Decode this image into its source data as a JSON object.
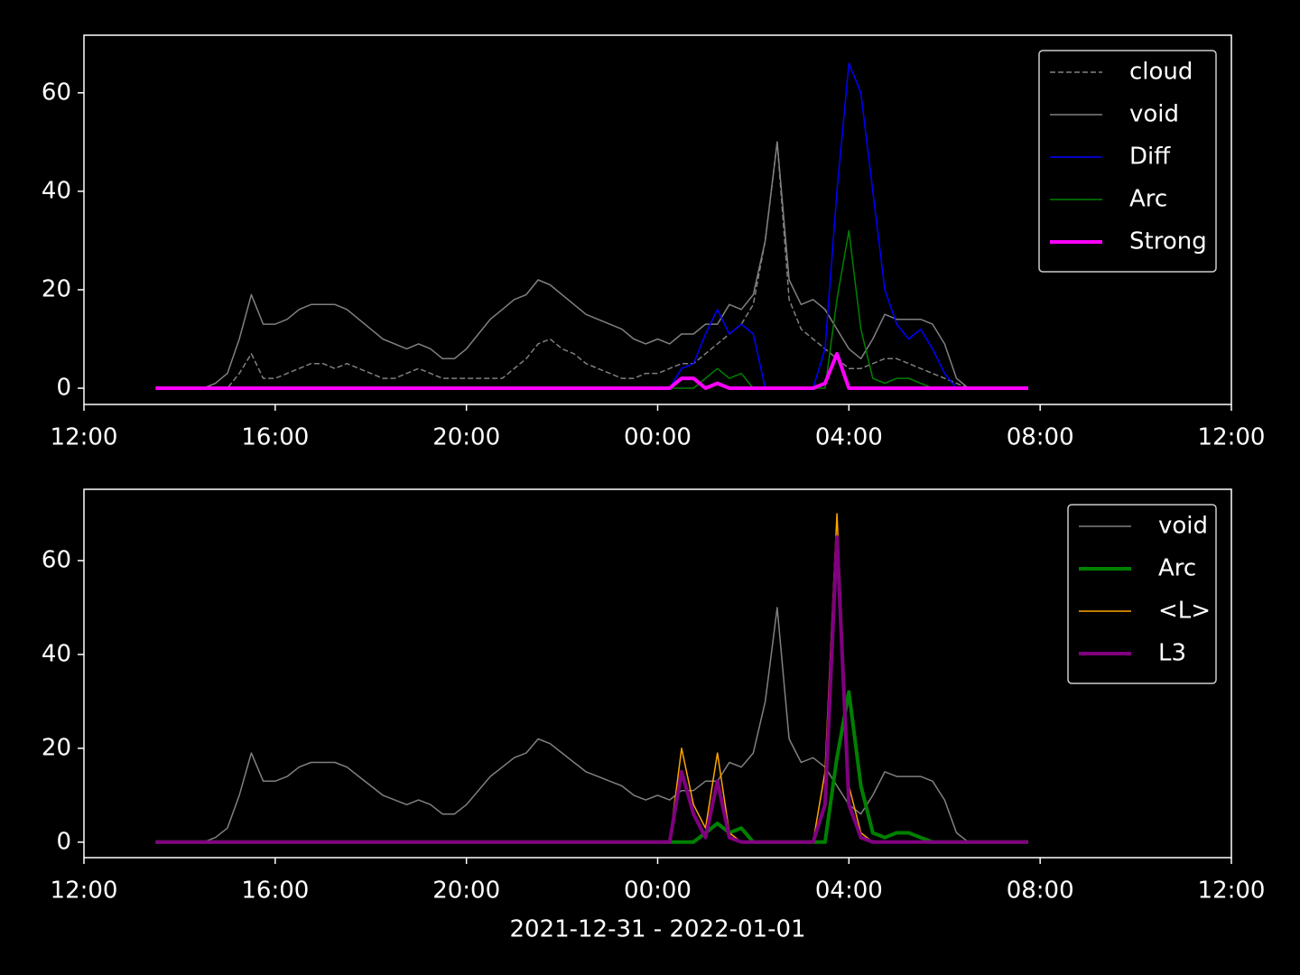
{
  "chart_data": [
    {
      "type": "line",
      "x": [
        1.5,
        1.75,
        2,
        2.25,
        2.5,
        2.75,
        3,
        3.25,
        3.5,
        3.75,
        4,
        4.25,
        4.5,
        4.75,
        5,
        5.25,
        5.5,
        5.75,
        6,
        6.25,
        6.5,
        6.75,
        7,
        7.25,
        7.5,
        7.75,
        8,
        8.25,
        8.5,
        8.75,
        9,
        9.25,
        9.5,
        9.75,
        10,
        10.25,
        10.5,
        10.75,
        11,
        11.25,
        11.5,
        11.75,
        12,
        12.25,
        12.5,
        12.75,
        13,
        13.25,
        13.5,
        13.75,
        14,
        14.25,
        14.5,
        14.75,
        15,
        15.25,
        15.5,
        15.75,
        16,
        16.25,
        16.5,
        16.75,
        17,
        17.25,
        17.5,
        17.75,
        18,
        18.25,
        18.5,
        18.75,
        19,
        19.25,
        19.5,
        19.75
      ],
      "xlim": [
        0,
        24
      ],
      "xticks": [
        {
          "value": 0,
          "label": "12:00"
        },
        {
          "value": 4,
          "label": "16:00"
        },
        {
          "value": 8,
          "label": "20:00"
        },
        {
          "value": 12,
          "label": "00:00"
        },
        {
          "value": 16,
          "label": "04:00"
        },
        {
          "value": 20,
          "label": "08:00"
        },
        {
          "value": 24,
          "label": "12:00"
        }
      ],
      "ylim": [
        -3.3,
        71.7
      ],
      "yticks": [
        0,
        20,
        40,
        60
      ],
      "legend": "upper right",
      "series": [
        {
          "name": "cloud",
          "color": "#808080",
          "linestyle": "dashed",
          "linewidth": 1.5,
          "values": [
            0,
            0,
            0,
            0,
            0,
            0,
            0,
            3,
            7,
            2,
            2,
            3,
            4,
            5,
            5,
            4,
            5,
            4,
            3,
            2,
            2,
            3,
            4,
            3,
            2,
            2,
            2,
            2,
            2,
            2,
            4,
            6,
            9,
            10,
            8,
            7,
            5,
            4,
            3,
            2,
            2,
            3,
            3,
            4,
            5,
            5,
            7,
            9,
            11,
            13,
            17,
            30,
            50,
            18,
            12,
            10,
            8,
            6,
            4,
            4,
            5,
            6,
            6,
            5,
            4,
            3,
            2,
            1,
            0,
            0,
            0,
            0,
            0,
            0
          ]
        },
        {
          "name": "void",
          "color": "#808080",
          "linestyle": "solid",
          "linewidth": 1.5,
          "values": [
            0,
            0,
            0,
            0,
            0,
            1,
            3,
            10,
            19,
            13,
            13,
            14,
            16,
            17,
            17,
            17,
            16,
            14,
            12,
            10,
            9,
            8,
            9,
            8,
            6,
            6,
            8,
            11,
            14,
            16,
            18,
            19,
            22,
            21,
            19,
            17,
            15,
            14,
            13,
            12,
            10,
            9,
            10,
            9,
            11,
            11,
            13,
            13,
            17,
            16,
            19,
            30,
            50,
            22,
            17,
            18,
            16,
            12,
            8,
            6,
            10,
            15,
            14,
            14,
            14,
            13,
            9,
            2,
            0,
            0,
            0,
            0,
            0,
            0
          ]
        },
        {
          "name": "Diff",
          "color": "#0000ff",
          "linestyle": "solid",
          "linewidth": 1.5,
          "values": [
            0,
            0,
            0,
            0,
            0,
            0,
            0,
            0,
            0,
            0,
            0,
            0,
            0,
            0,
            0,
            0,
            0,
            0,
            0,
            0,
            0,
            0,
            0,
            0,
            0,
            0,
            0,
            0,
            0,
            0,
            0,
            0,
            0,
            0,
            0,
            0,
            0,
            0,
            0,
            0,
            0,
            0,
            0,
            0,
            4,
            5,
            11,
            16,
            11,
            13,
            11,
            0,
            0,
            0,
            0,
            0,
            8,
            40,
            66,
            60,
            40,
            20,
            13,
            10,
            12,
            8,
            3,
            0,
            0,
            0,
            0,
            0,
            0,
            0
          ]
        },
        {
          "name": "Arc",
          "color": "#008000",
          "linestyle": "solid",
          "linewidth": 1.5,
          "values": [
            0,
            0,
            0,
            0,
            0,
            0,
            0,
            0,
            0,
            0,
            0,
            0,
            0,
            0,
            0,
            0,
            0,
            0,
            0,
            0,
            0,
            0,
            0,
            0,
            0,
            0,
            0,
            0,
            0,
            0,
            0,
            0,
            0,
            0,
            0,
            0,
            0,
            0,
            0,
            0,
            0,
            0,
            0,
            0,
            0,
            0,
            2,
            4,
            2,
            3,
            0,
            0,
            0,
            0,
            0,
            0,
            0,
            18,
            32,
            12,
            2,
            1,
            2,
            2,
            1,
            0,
            0,
            0,
            0,
            0,
            0,
            0,
            0,
            0
          ]
        },
        {
          "name": "Strong",
          "color": "#ff00ff",
          "linestyle": "solid",
          "linewidth": 4,
          "values": [
            0,
            0,
            0,
            0,
            0,
            0,
            0,
            0,
            0,
            0,
            0,
            0,
            0,
            0,
            0,
            0,
            0,
            0,
            0,
            0,
            0,
            0,
            0,
            0,
            0,
            0,
            0,
            0,
            0,
            0,
            0,
            0,
            0,
            0,
            0,
            0,
            0,
            0,
            0,
            0,
            0,
            0,
            0,
            0,
            2,
            2,
            0,
            1,
            0,
            0,
            0,
            0,
            0,
            0,
            0,
            0,
            1,
            7,
            0,
            0,
            0,
            0,
            0,
            0,
            0,
            0,
            0,
            0,
            0,
            0,
            0,
            0,
            0,
            0
          ]
        }
      ]
    },
    {
      "type": "line",
      "x": [
        1.5,
        1.75,
        2,
        2.25,
        2.5,
        2.75,
        3,
        3.25,
        3.5,
        3.75,
        4,
        4.25,
        4.5,
        4.75,
        5,
        5.25,
        5.5,
        5.75,
        6,
        6.25,
        6.5,
        6.75,
        7,
        7.25,
        7.5,
        7.75,
        8,
        8.25,
        8.5,
        8.75,
        9,
        9.25,
        9.5,
        9.75,
        10,
        10.25,
        10.5,
        10.75,
        11,
        11.25,
        11.5,
        11.75,
        12,
        12.25,
        12.5,
        12.75,
        13,
        13.25,
        13.5,
        13.75,
        14,
        14.25,
        14.5,
        14.75,
        15,
        15.25,
        15.5,
        15.75,
        16,
        16.25,
        16.5,
        16.75,
        17,
        17.25,
        17.5,
        17.75,
        18,
        18.25,
        18.5,
        18.75,
        19,
        19.25,
        19.5,
        19.75
      ],
      "xlim": [
        0,
        24
      ],
      "xticks": [
        {
          "value": 0,
          "label": "12:00"
        },
        {
          "value": 4,
          "label": "16:00"
        },
        {
          "value": 8,
          "label": "20:00"
        },
        {
          "value": 12,
          "label": "00:00"
        },
        {
          "value": 16,
          "label": "04:00"
        },
        {
          "value": 20,
          "label": "08:00"
        },
        {
          "value": 24,
          "label": "12:00"
        }
      ],
      "xlabel": "2021-12-31 - 2022-01-01",
      "ylim": [
        -3.3,
        75.2
      ],
      "yticks": [
        0,
        20,
        40,
        60
      ],
      "legend": "upper right",
      "series": [
        {
          "name": "void",
          "color": "#808080",
          "linestyle": "solid",
          "linewidth": 1.5,
          "values": [
            0,
            0,
            0,
            0,
            0,
            1,
            3,
            10,
            19,
            13,
            13,
            14,
            16,
            17,
            17,
            17,
            16,
            14,
            12,
            10,
            9,
            8,
            9,
            8,
            6,
            6,
            8,
            11,
            14,
            16,
            18,
            19,
            22,
            21,
            19,
            17,
            15,
            14,
            13,
            12,
            10,
            9,
            10,
            9,
            11,
            11,
            13,
            13,
            17,
            16,
            19,
            30,
            50,
            22,
            17,
            18,
            16,
            12,
            8,
            6,
            10,
            15,
            14,
            14,
            14,
            13,
            9,
            2,
            0,
            0,
            0,
            0,
            0,
            0
          ]
        },
        {
          "name": "Arc",
          "color": "#008000",
          "linestyle": "solid",
          "linewidth": 4,
          "values": [
            0,
            0,
            0,
            0,
            0,
            0,
            0,
            0,
            0,
            0,
            0,
            0,
            0,
            0,
            0,
            0,
            0,
            0,
            0,
            0,
            0,
            0,
            0,
            0,
            0,
            0,
            0,
            0,
            0,
            0,
            0,
            0,
            0,
            0,
            0,
            0,
            0,
            0,
            0,
            0,
            0,
            0,
            0,
            0,
            0,
            0,
            2,
            4,
            2,
            3,
            0,
            0,
            0,
            0,
            0,
            0,
            0,
            18,
            32,
            12,
            2,
            1,
            2,
            2,
            1,
            0,
            0,
            0,
            0,
            0,
            0,
            0,
            0,
            0
          ]
        },
        {
          "name": "<L>",
          "color": "#ffa500",
          "linestyle": "solid",
          "linewidth": 1.5,
          "values": [
            0,
            0,
            0,
            0,
            0,
            0,
            0,
            0,
            0,
            0,
            0,
            0,
            0,
            0,
            0,
            0,
            0,
            0,
            0,
            0,
            0,
            0,
            0,
            0,
            0,
            0,
            0,
            0,
            0,
            0,
            0,
            0,
            0,
            0,
            0,
            0,
            0,
            0,
            0,
            0,
            0,
            0,
            0,
            0,
            20,
            8,
            3,
            19,
            2,
            0,
            0,
            0,
            0,
            0,
            0,
            0,
            15,
            70,
            12,
            2,
            0,
            0,
            0,
            0,
            0,
            0,
            0,
            0,
            0,
            0,
            0,
            0,
            0,
            0
          ]
        },
        {
          "name": "L3",
          "color": "#800080",
          "linestyle": "solid",
          "linewidth": 4,
          "values": [
            0,
            0,
            0,
            0,
            0,
            0,
            0,
            0,
            0,
            0,
            0,
            0,
            0,
            0,
            0,
            0,
            0,
            0,
            0,
            0,
            0,
            0,
            0,
            0,
            0,
            0,
            0,
            0,
            0,
            0,
            0,
            0,
            0,
            0,
            0,
            0,
            0,
            0,
            0,
            0,
            0,
            0,
            0,
            0,
            15,
            6,
            1,
            13,
            1,
            0,
            0,
            0,
            0,
            0,
            0,
            0,
            8,
            65,
            8,
            1,
            0,
            0,
            0,
            0,
            0,
            0,
            0,
            0,
            0,
            0,
            0,
            0,
            0,
            0
          ]
        }
      ]
    }
  ]
}
